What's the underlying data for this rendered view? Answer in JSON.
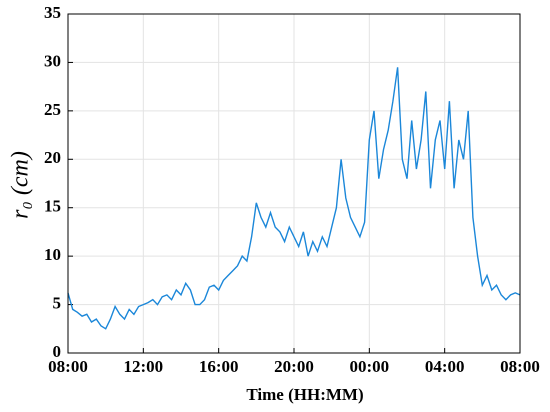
{
  "chart_data": {
    "type": "line",
    "xlabel": "Time (HH:MM)",
    "ylabel": "r₀ (cm)",
    "x": [
      8,
      8.25,
      8.5,
      8.75,
      9,
      9.25,
      9.5,
      9.75,
      10,
      10.25,
      10.5,
      10.75,
      11,
      11.25,
      11.5,
      11.75,
      12,
      12.25,
      12.5,
      12.75,
      13,
      13.25,
      13.5,
      13.75,
      14,
      14.25,
      14.5,
      14.75,
      15,
      15.25,
      15.5,
      15.75,
      16,
      16.25,
      16.5,
      16.75,
      17,
      17.25,
      17.5,
      17.75,
      18,
      18.25,
      18.5,
      18.75,
      19,
      19.25,
      19.5,
      19.75,
      20,
      20.25,
      20.5,
      20.75,
      21,
      21.25,
      21.5,
      21.75,
      22,
      22.25,
      22.5,
      22.75,
      23,
      23.25,
      23.5,
      23.75,
      24,
      24.25,
      24.5,
      24.75,
      25,
      25.25,
      25.5,
      25.75,
      26,
      26.25,
      26.5,
      26.75,
      27,
      27.25,
      27.5,
      27.75,
      28,
      28.25,
      28.5,
      28.75,
      29,
      29.25,
      29.5,
      29.75,
      30,
      30.25,
      30.5,
      30.75,
      31,
      31.25,
      31.5,
      31.75,
      32
    ],
    "series": [
      {
        "color": "#1b87d9",
        "values": [
          6.2,
          4.5,
          4.2,
          3.8,
          4.0,
          3.2,
          3.5,
          2.8,
          2.5,
          3.5,
          4.8,
          4.0,
          3.5,
          4.5,
          4.0,
          4.8,
          5.0,
          5.2,
          5.5,
          5.0,
          5.8,
          6.0,
          5.5,
          6.5,
          6.0,
          7.2,
          6.5,
          5.0,
          5.0,
          5.5,
          6.8,
          7.0,
          6.5,
          7.5,
          8.0,
          8.5,
          9.0,
          10.0,
          9.5,
          12.0,
          15.5,
          14.0,
          13.0,
          14.5,
          13.0,
          12.5,
          11.5,
          13.0,
          12.0,
          11.0,
          12.5,
          10.0,
          11.5,
          10.5,
          12.0,
          11.0,
          13.0,
          15.0,
          20.0,
          16.0,
          14.0,
          13.0,
          12.0,
          13.5,
          22.0,
          25.0,
          18.0,
          21.0,
          23.0,
          26.0,
          29.5,
          20.0,
          18.0,
          24.0,
          19.0,
          22.0,
          27.0,
          17.0,
          22.0,
          24.0,
          19.0,
          26.0,
          17.0,
          22.0,
          20.0,
          25.0,
          14.0,
          10.0,
          7.0,
          8.0,
          6.5,
          7.0,
          6.0,
          5.5,
          6.0,
          6.2,
          6.0
        ]
      }
    ],
    "xlim": [
      8,
      32
    ],
    "xticks": [
      {
        "value": 8,
        "label": "08:00"
      },
      {
        "value": 12,
        "label": "12:00"
      },
      {
        "value": 16,
        "label": "16:00"
      },
      {
        "value": 20,
        "label": "20:00"
      },
      {
        "value": 24,
        "label": "00:00"
      },
      {
        "value": 28,
        "label": "04:00"
      },
      {
        "value": 32,
        "label": "08:00"
      }
    ],
    "ylim": [
      0,
      35
    ],
    "yticks": [
      0,
      5,
      10,
      15,
      20,
      25,
      30,
      35
    ],
    "grid": true
  }
}
